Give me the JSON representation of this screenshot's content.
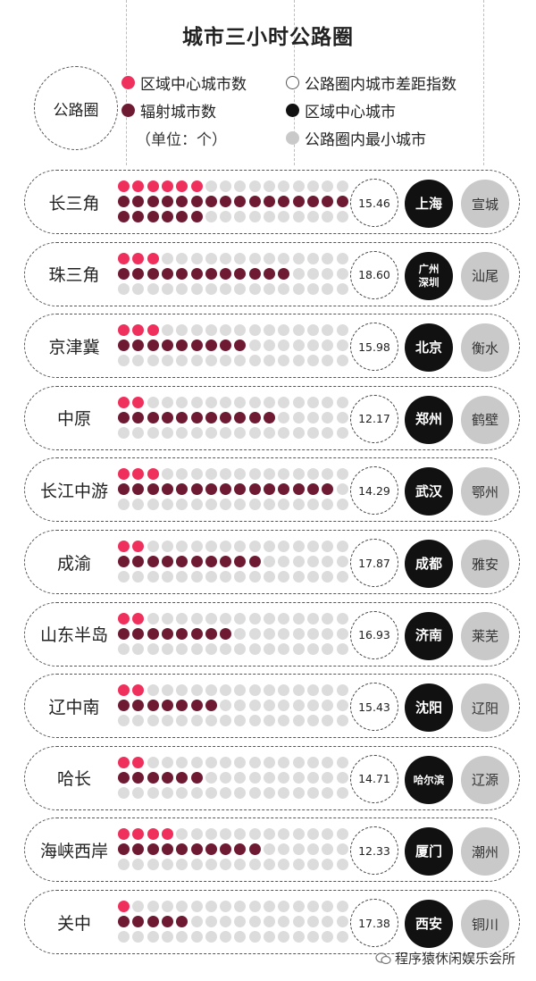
{
  "title": "城市三小时公路圈",
  "legend": {
    "circle_label": "公路圈",
    "items": [
      {
        "label": "区域中心城市数",
        "color": "#f0305c"
      },
      {
        "label": "辐射城市数",
        "color": "#6e1a33"
      },
      {
        "label": "公路圈内城市差距指数",
        "color": "hollow"
      },
      {
        "label": "区域中心城市",
        "color": "#111111"
      },
      {
        "label": "公路圈内最小城市",
        "color": "#c9c9c9"
      }
    ],
    "unit": "（单位：个）"
  },
  "chart_data": {
    "type": "table",
    "columns": [
      "公路圈",
      "区域中心城市数",
      "辐射城市数",
      "公路圈内城市差距指数",
      "区域中心城市",
      "公路圈内最小城市"
    ],
    "rows": [
      {
        "region": "长三角",
        "center_count": 6,
        "radiating_count": 22,
        "index": "15.46",
        "center_city": "上海",
        "min_city": "宣城"
      },
      {
        "region": "珠三角",
        "center_count": 3,
        "radiating_count": 12,
        "index": "18.60",
        "center_city": "广州\n深圳",
        "min_city": "汕尾"
      },
      {
        "region": "京津冀",
        "center_count": 3,
        "radiating_count": 9,
        "index": "15.98",
        "center_city": "北京",
        "min_city": "衡水"
      },
      {
        "region": "中原",
        "center_count": 2,
        "radiating_count": 11,
        "index": "12.17",
        "center_city": "郑州",
        "min_city": "鹤壁"
      },
      {
        "region": "长江中游",
        "center_count": 3,
        "radiating_count": 15,
        "index": "14.29",
        "center_city": "武汉",
        "min_city": "鄂州"
      },
      {
        "region": "成渝",
        "center_count": 2,
        "radiating_count": 10,
        "index": "17.87",
        "center_city": "成都",
        "min_city": "雅安"
      },
      {
        "region": "山东半岛",
        "center_count": 2,
        "radiating_count": 8,
        "index": "16.93",
        "center_city": "济南",
        "min_city": "莱芜"
      },
      {
        "region": "辽中南",
        "center_count": 2,
        "radiating_count": 7,
        "index": "15.43",
        "center_city": "沈阳",
        "min_city": "辽阳"
      },
      {
        "region": "哈长",
        "center_count": 2,
        "radiating_count": 6,
        "index": "14.71",
        "center_city": "哈尔滨",
        "min_city": "辽源"
      },
      {
        "region": "海峡西岸",
        "center_count": 4,
        "radiating_count": 10,
        "index": "12.33",
        "center_city": "厦门",
        "min_city": "潮州"
      },
      {
        "region": "关中",
        "center_count": 1,
        "radiating_count": 5,
        "index": "17.38",
        "center_city": "西安",
        "min_city": "铜川"
      }
    ]
  },
  "watermark": "程序猿休闲娱乐会所"
}
